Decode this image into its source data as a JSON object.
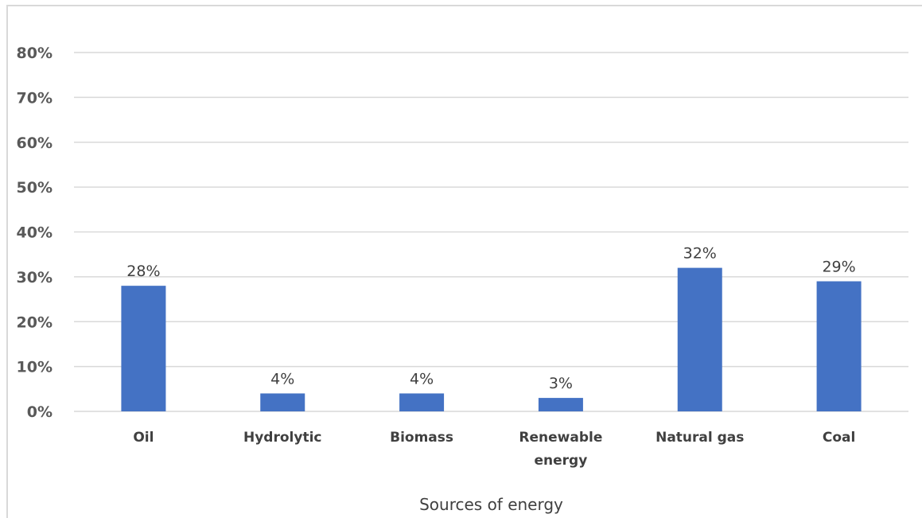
{
  "chart_data": {
    "type": "bar",
    "title": "",
    "xlabel": "Sources of energy",
    "ylabel": "",
    "categories": [
      "Oil",
      "Hydrolytic",
      "Biomass",
      "Renewable energy",
      "Natural gas",
      "Coal"
    ],
    "category_lines": [
      [
        "Oil"
      ],
      [
        "Hydrolytic"
      ],
      [
        "Biomass"
      ],
      [
        "Renewable",
        "energy"
      ],
      [
        "Natural gas"
      ],
      [
        "Coal"
      ]
    ],
    "values": [
      28,
      4,
      4,
      3,
      32,
      29
    ],
    "data_labels": [
      "28%",
      "4%",
      "4%",
      "3%",
      "32%",
      "29%"
    ],
    "ylim": [
      0,
      80
    ],
    "yticks": [
      0,
      10,
      20,
      30,
      40,
      50,
      60,
      70,
      80
    ],
    "ytick_labels": [
      "0%",
      "10%",
      "20%",
      "30%",
      "40%",
      "50%",
      "60%",
      "70%",
      "80%"
    ],
    "grid": true,
    "legend": "none",
    "colors": {
      "bar": "#4472c4",
      "grid": "#d9d9d9",
      "text": "#404040",
      "axis_text": "#595959"
    }
  }
}
